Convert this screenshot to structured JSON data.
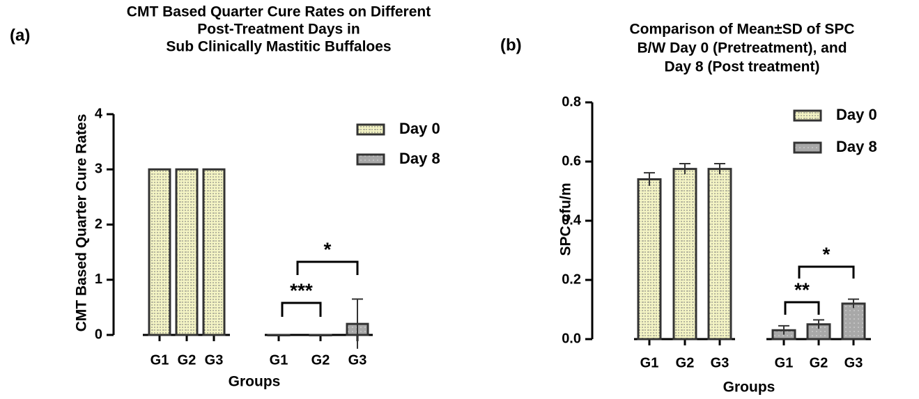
{
  "chart_data": [
    {
      "type": "bar",
      "label": "(a)",
      "title_lines": [
        "CMT Based Quarter Cure Rates on Different",
        "Post-Treatment Days in",
        "Sub Clinically Mastitic Buffaloes"
      ],
      "y_label": "CMT Based Quarter Cure Rates",
      "x_label": "Groups",
      "categories": [
        "G1",
        "G2",
        "G3",
        "G1",
        "G2",
        "G3"
      ],
      "series": [
        {
          "name": "Day 0",
          "color": "#f4f4c4",
          "values": [
            3,
            3,
            3,
            null,
            null,
            null
          ],
          "errors": [
            null,
            null,
            null,
            null,
            null,
            null
          ]
        },
        {
          "name": "Day 8",
          "color": "#a8a8a8",
          "values": [
            null,
            null,
            null,
            0,
            0,
            0.2
          ],
          "errors": [
            null,
            null,
            null,
            null,
            null,
            0.45
          ]
        }
      ],
      "ylim": [
        0,
        4
      ],
      "yticks": [
        0,
        1,
        2,
        3,
        4
      ],
      "annotations": [
        "***",
        "*"
      ]
    },
    {
      "type": "bar",
      "label": "(b)",
      "title_lines": [
        "Comparison of Mean±SD of SPC",
        "B/W Day 0 (Pretreatment), and",
        "Day 8 (Post treatment)"
      ],
      "y_label": "SPC cfu/m",
      "x_label": "Groups",
      "categories": [
        "G1",
        "G2",
        "G3",
        "G1",
        "G2",
        "G3"
      ],
      "series": [
        {
          "name": "Day 0",
          "color": "#f4f4c4",
          "values": [
            0.54,
            0.575,
            0.575,
            null,
            null,
            null
          ],
          "errors": [
            0.022,
            0.018,
            0.018,
            null,
            null,
            null
          ]
        },
        {
          "name": "Day 8",
          "color": "#a8a8a8",
          "values": [
            null,
            null,
            null,
            0.03,
            0.05,
            0.12
          ],
          "errors": [
            null,
            null,
            null,
            0.015,
            0.015,
            0.015
          ]
        }
      ],
      "ylim": [
        0,
        0.8
      ],
      "yticks": [
        {
          "value": 0,
          "label": "0.0"
        },
        0.2,
        0.4,
        0.6,
        0.8
      ],
      "annotations": [
        "**",
        "*"
      ]
    }
  ]
}
